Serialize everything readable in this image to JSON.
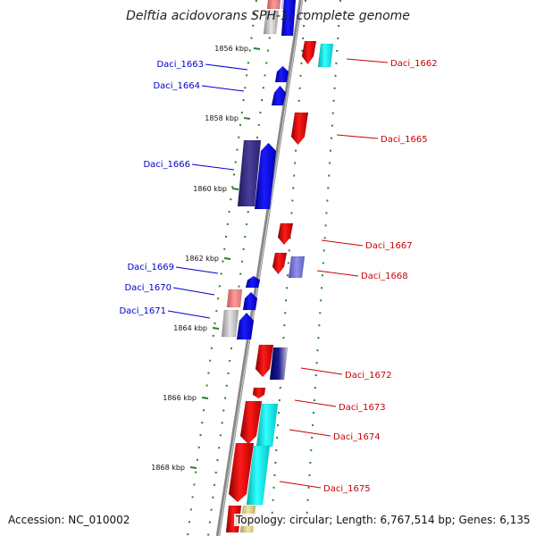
{
  "title": "Delftia acidovorans SPH-1, complete genome",
  "accession": "Accession: NC_010002",
  "topology": "Topology: circular; Length: 6,767,514 bp; Genes: 6,135",
  "colors": {
    "backbone": "#8a8a8a",
    "tick": "#2e7d32",
    "forward_label": "#0000cc",
    "reverse_label": "#cc0000"
  },
  "ticks": [
    "1856 kbp",
    "1858 kbp",
    "1860 kbp",
    "1862 kbp",
    "1864 kbp",
    "1866 kbp",
    "1868 kbp"
  ],
  "genes": [
    {
      "id": "Daci_1662",
      "strand": "reverse"
    },
    {
      "id": "Daci_1663",
      "strand": "forward"
    },
    {
      "id": "Daci_1664",
      "strand": "forward"
    },
    {
      "id": "Daci_1665",
      "strand": "reverse"
    },
    {
      "id": "Daci_1666",
      "strand": "forward"
    },
    {
      "id": "Daci_1667",
      "strand": "reverse"
    },
    {
      "id": "Daci_1668",
      "strand": "reverse"
    },
    {
      "id": "Daci_1669",
      "strand": "forward"
    },
    {
      "id": "Daci_1670",
      "strand": "forward"
    },
    {
      "id": "Daci_1671",
      "strand": "forward"
    },
    {
      "id": "Daci_1672",
      "strand": "reverse"
    },
    {
      "id": "Daci_1673",
      "strand": "reverse"
    },
    {
      "id": "Daci_1674",
      "strand": "reverse"
    },
    {
      "id": "Daci_1675",
      "strand": "reverse"
    }
  ]
}
